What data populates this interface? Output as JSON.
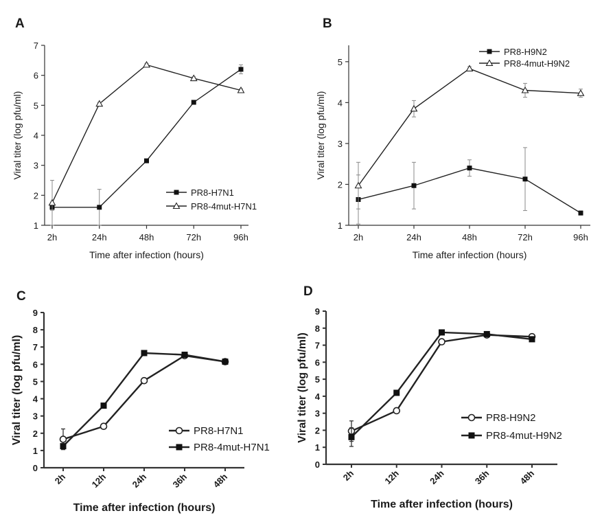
{
  "chart_data": [
    {
      "panel": "A",
      "type": "line",
      "categories": [
        "2h",
        "24h",
        "48h",
        "72h",
        "96h"
      ],
      "ylabel": "Viral titer (log pfu/ml)",
      "xlabel": "Time after infection (hours)",
      "ylim": [
        1,
        7
      ],
      "yticks": [
        "1",
        "2",
        "3",
        "4",
        "5",
        "6",
        "7"
      ],
      "legend_position": "bottom-right",
      "series": [
        {
          "name": "PR8-H7N1",
          "marker": "filled-square",
          "values": [
            1.6,
            1.6,
            3.15,
            5.1,
            6.2
          ],
          "errors": [
            0.1,
            0.6,
            0.05,
            0.05,
            0.15
          ]
        },
        {
          "name": "PR8-4mut-H7N1",
          "marker": "open-triangle",
          "values": [
            1.75,
            5.05,
            6.35,
            5.9,
            5.5
          ],
          "errors": [
            0.75,
            0.05,
            0.05,
            0.05,
            0.05
          ]
        }
      ]
    },
    {
      "panel": "B",
      "type": "line",
      "categories": [
        "2h",
        "24h",
        "48h",
        "72h",
        "96h"
      ],
      "ylabel": "Viral titer (log pfu/ml)",
      "xlabel": "Time after infection (hours)",
      "ylim": [
        1,
        5.4
      ],
      "yticks": [
        "1",
        "2",
        "3",
        "4",
        "5"
      ],
      "legend_position": "top-right",
      "series": [
        {
          "name": "PR8-H9N2",
          "marker": "filled-square",
          "values": [
            1.63,
            1.97,
            2.4,
            2.13,
            1.3
          ],
          "errors": [
            0.6,
            0.57,
            0.2,
            0.77,
            0.05
          ]
        },
        {
          "name": "PR8-4mut-H9N2",
          "marker": "open-triangle",
          "values": [
            1.97,
            3.85,
            4.83,
            4.3,
            4.23
          ],
          "errors": [
            0.57,
            0.2,
            0.05,
            0.17,
            0.1
          ]
        }
      ]
    },
    {
      "panel": "C",
      "type": "line",
      "categories": [
        "2h",
        "12h",
        "24h",
        "36h",
        "48h"
      ],
      "ylabel": "Viral titer (log pfu/ml)",
      "xlabel": "Time after infection (hours)",
      "ylim": [
        0,
        9
      ],
      "yticks": [
        "0",
        "1",
        "2",
        "3",
        "4",
        "5",
        "6",
        "7",
        "8",
        "9"
      ],
      "legend_position": "bottom-right",
      "series": [
        {
          "name": "PR8-H7N1",
          "marker": "open-circle",
          "values": [
            1.65,
            2.4,
            5.05,
            6.5,
            6.15
          ],
          "errors": [
            0.6,
            0.05,
            0.05,
            0.05,
            0.05
          ]
        },
        {
          "name": "PR8-4mut-H7N1",
          "marker": "filled-square",
          "values": [
            1.25,
            3.6,
            6.65,
            6.55,
            6.15
          ],
          "errors": [
            0.1,
            0.05,
            0.05,
            0.05,
            0.05
          ]
        }
      ]
    },
    {
      "panel": "D",
      "type": "line",
      "categories": [
        "2h",
        "12h",
        "24h",
        "36h",
        "48h"
      ],
      "ylabel": "Viral titer (log pfu/ml)",
      "xlabel": "Time after infection (hours)",
      "ylim": [
        0,
        9
      ],
      "yticks": [
        "0",
        "1",
        "2",
        "3",
        "4",
        "5",
        "6",
        "7",
        "8",
        "9"
      ],
      "legend_position": "bottom-right",
      "series": [
        {
          "name": "PR8-H9N2",
          "marker": "open-circle",
          "values": [
            1.95,
            3.15,
            7.2,
            7.6,
            7.5
          ],
          "errors": [
            0.6,
            0.05,
            0.05,
            0.05,
            0.1
          ]
        },
        {
          "name": "PR8-4mut-H9N2",
          "marker": "filled-square",
          "values": [
            1.6,
            4.2,
            7.75,
            7.65,
            7.35
          ],
          "errors": [
            0.55,
            0.05,
            0.05,
            0.05,
            0.05
          ]
        }
      ]
    }
  ]
}
